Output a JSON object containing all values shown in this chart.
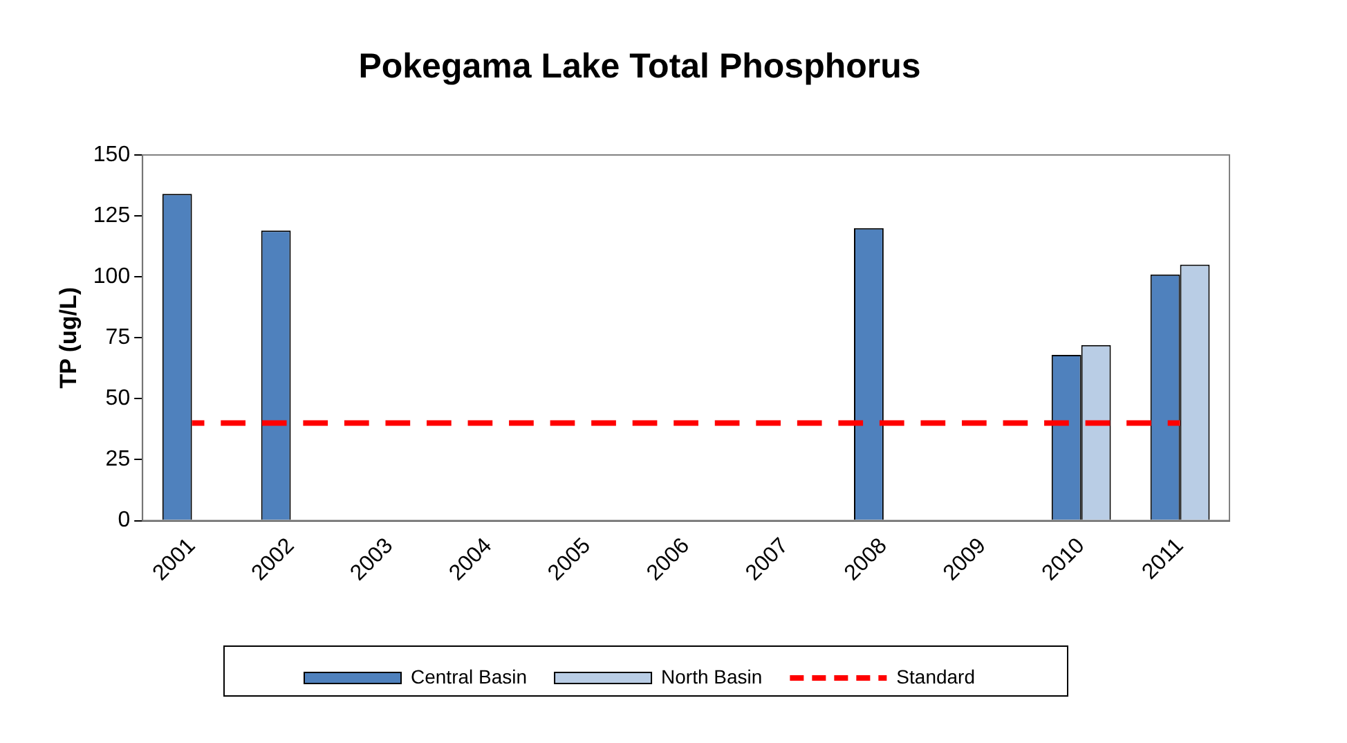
{
  "chart_data": {
    "type": "bar",
    "title": "Pokegama Lake Total Phosphorus",
    "ylabel": "TP (ug/L)",
    "categories": [
      "2001",
      "2002",
      "2003",
      "2004",
      "2005",
      "2006",
      "2007",
      "2008",
      "2009",
      "2010",
      "2011"
    ],
    "series": [
      {
        "name": "Central Basin",
        "color": "#4f81bd",
        "values": [
          134,
          119,
          null,
          null,
          null,
          null,
          null,
          120,
          null,
          68,
          101
        ]
      },
      {
        "name": "North Basin",
        "color": "#b9cde5",
        "values": [
          null,
          null,
          null,
          null,
          null,
          null,
          null,
          null,
          null,
          72,
          105
        ]
      },
      {
        "name": "Standard",
        "type": "line",
        "color": "#ff0000",
        "line_style": "dashed",
        "marker": "none",
        "values": [
          40,
          40,
          40,
          40,
          40,
          40,
          40,
          40,
          40,
          40,
          40
        ]
      }
    ],
    "ylim": [
      0,
      150
    ],
    "yticks": [
      0,
      25,
      50,
      75,
      100,
      125,
      150
    ],
    "grid": false,
    "legend": "bottom"
  }
}
